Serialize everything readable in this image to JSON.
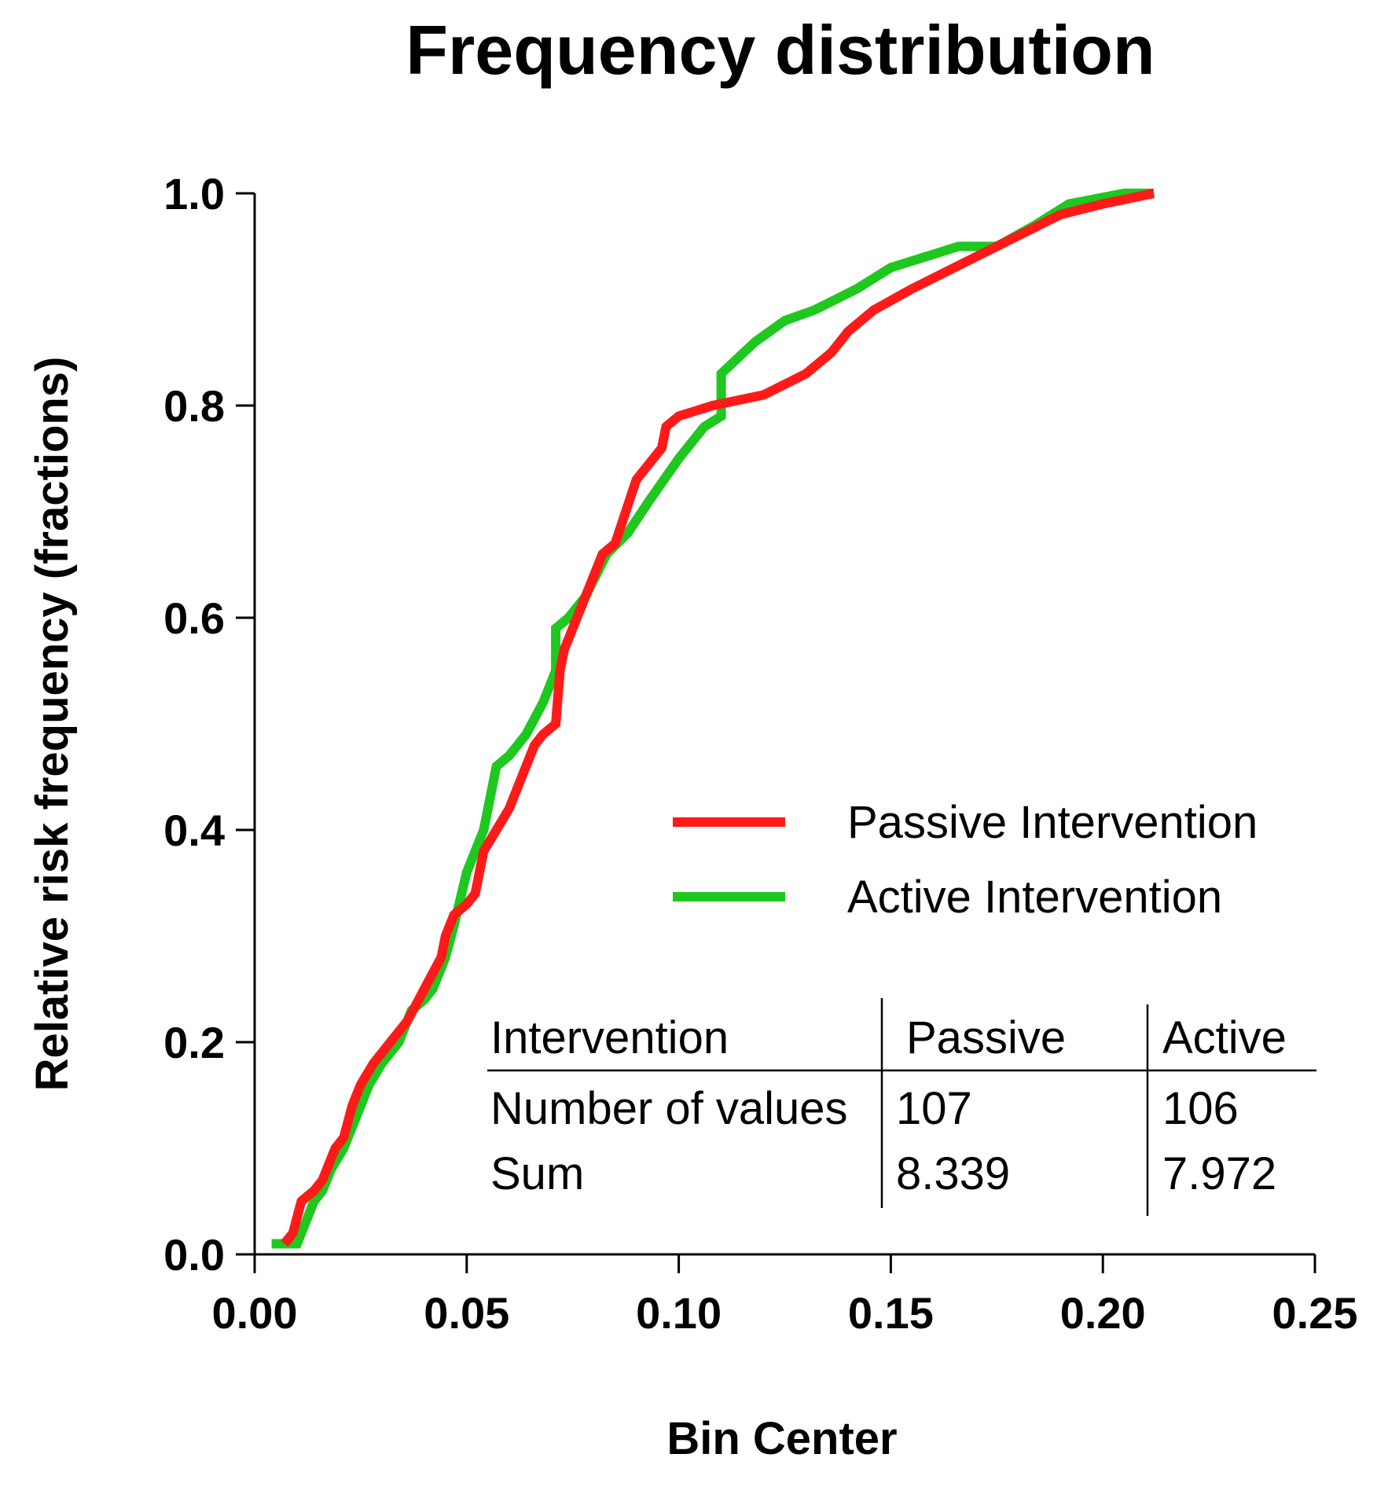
{
  "chart_data": {
    "type": "line",
    "title": "Frequency distribution",
    "xlabel": "Bin Center",
    "ylabel": "Relative risk frequency (fractions)",
    "xlim": [
      0,
      0.25
    ],
    "ylim": [
      0,
      1.0
    ],
    "x_ticks": [
      "0.00",
      "0.05",
      "0.10",
      "0.15",
      "0.20",
      "0.25"
    ],
    "y_ticks": [
      "0.0",
      "0.2",
      "0.4",
      "0.6",
      "0.8",
      "1.0"
    ],
    "grid": false,
    "legend_position": "center-right",
    "series": [
      {
        "name": "Passive Intervention",
        "color": "#ff1a1a",
        "points": [
          [
            0.007,
            0.01
          ],
          [
            0.009,
            0.02
          ],
          [
            0.011,
            0.05
          ],
          [
            0.014,
            0.06
          ],
          [
            0.016,
            0.07
          ],
          [
            0.018,
            0.09
          ],
          [
            0.019,
            0.1
          ],
          [
            0.021,
            0.11
          ],
          [
            0.023,
            0.14
          ],
          [
            0.025,
            0.16
          ],
          [
            0.028,
            0.18
          ],
          [
            0.032,
            0.2
          ],
          [
            0.036,
            0.22
          ],
          [
            0.04,
            0.25
          ],
          [
            0.044,
            0.28
          ],
          [
            0.045,
            0.3
          ],
          [
            0.047,
            0.32
          ],
          [
            0.05,
            0.33
          ],
          [
            0.052,
            0.34
          ],
          [
            0.054,
            0.38
          ],
          [
            0.057,
            0.4
          ],
          [
            0.06,
            0.42
          ],
          [
            0.064,
            0.46
          ],
          [
            0.066,
            0.48
          ],
          [
            0.068,
            0.49
          ],
          [
            0.071,
            0.5
          ],
          [
            0.072,
            0.55
          ],
          [
            0.073,
            0.57
          ],
          [
            0.078,
            0.62
          ],
          [
            0.082,
            0.66
          ],
          [
            0.085,
            0.67
          ],
          [
            0.09,
            0.73
          ],
          [
            0.094,
            0.75
          ],
          [
            0.096,
            0.76
          ],
          [
            0.097,
            0.78
          ],
          [
            0.1,
            0.79
          ],
          [
            0.108,
            0.8
          ],
          [
            0.12,
            0.81
          ],
          [
            0.13,
            0.83
          ],
          [
            0.136,
            0.85
          ],
          [
            0.14,
            0.87
          ],
          [
            0.146,
            0.89
          ],
          [
            0.155,
            0.91
          ],
          [
            0.165,
            0.93
          ],
          [
            0.175,
            0.95
          ],
          [
            0.185,
            0.97
          ],
          [
            0.19,
            0.98
          ],
          [
            0.2,
            0.99
          ],
          [
            0.212,
            1.0
          ]
        ]
      },
      {
        "name": "Active Intervention",
        "color": "#1ec81e",
        "points": [
          [
            0.004,
            0.01
          ],
          [
            0.007,
            0.01
          ],
          [
            0.01,
            0.01
          ],
          [
            0.012,
            0.03
          ],
          [
            0.014,
            0.05
          ],
          [
            0.016,
            0.06
          ],
          [
            0.018,
            0.08
          ],
          [
            0.021,
            0.1
          ],
          [
            0.024,
            0.13
          ],
          [
            0.027,
            0.16
          ],
          [
            0.03,
            0.18
          ],
          [
            0.034,
            0.2
          ],
          [
            0.037,
            0.23
          ],
          [
            0.04,
            0.24
          ],
          [
            0.042,
            0.25
          ],
          [
            0.045,
            0.28
          ],
          [
            0.047,
            0.31
          ],
          [
            0.05,
            0.36
          ],
          [
            0.052,
            0.38
          ],
          [
            0.054,
            0.4
          ],
          [
            0.057,
            0.46
          ],
          [
            0.06,
            0.47
          ],
          [
            0.064,
            0.49
          ],
          [
            0.068,
            0.52
          ],
          [
            0.071,
            0.55
          ],
          [
            0.071,
            0.59
          ],
          [
            0.074,
            0.6
          ],
          [
            0.078,
            0.62
          ],
          [
            0.083,
            0.66
          ],
          [
            0.088,
            0.68
          ],
          [
            0.093,
            0.71
          ],
          [
            0.1,
            0.75
          ],
          [
            0.106,
            0.78
          ],
          [
            0.11,
            0.79
          ],
          [
            0.11,
            0.83
          ],
          [
            0.118,
            0.86
          ],
          [
            0.125,
            0.88
          ],
          [
            0.132,
            0.89
          ],
          [
            0.142,
            0.91
          ],
          [
            0.15,
            0.93
          ],
          [
            0.158,
            0.94
          ],
          [
            0.166,
            0.95
          ],
          [
            0.175,
            0.95
          ],
          [
            0.184,
            0.97
          ],
          [
            0.192,
            0.99
          ],
          [
            0.205,
            1.0
          ],
          [
            0.212,
            1.0
          ]
        ]
      }
    ],
    "table": {
      "headers": [
        "Intervention",
        "Passive",
        "Active"
      ],
      "rows": [
        [
          "Number of values",
          "107",
          "106"
        ],
        [
          "Sum",
          "8.339",
          "7.972"
        ]
      ]
    }
  }
}
